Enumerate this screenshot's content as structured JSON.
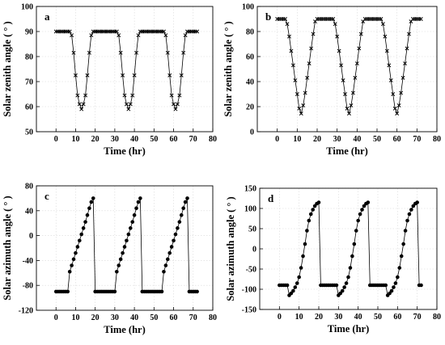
{
  "chart_data": [
    {
      "panel": "a",
      "type": "line",
      "marker": "x",
      "xlabel": "Time (hr)",
      "ylabel": "Solar zenith angle ( ° )",
      "xlim": [
        -10,
        80
      ],
      "ylim": [
        50,
        100
      ],
      "xticks": [
        "0",
        "10",
        "20",
        "30",
        "40",
        "50",
        "60",
        "70",
        "80"
      ],
      "yticks": [
        "50",
        "60",
        "70",
        "80",
        "90",
        "100"
      ],
      "grid": true,
      "series": [
        {
          "x": [
            0,
            1,
            2,
            3,
            4,
            5,
            6,
            7,
            8,
            9,
            10,
            11,
            12,
            13,
            14,
            15,
            16,
            17,
            18,
            19,
            20,
            21,
            22,
            23,
            24,
            25,
            26,
            27,
            28,
            29,
            30,
            31,
            32,
            33,
            34,
            35,
            36,
            37,
            38,
            39,
            40,
            41,
            42,
            43,
            44,
            45,
            46,
            47,
            48,
            49,
            50,
            51,
            52,
            53,
            54,
            55,
            56,
            57,
            58,
            59,
            60,
            61,
            62,
            63,
            64,
            65,
            66,
            67,
            68,
            69,
            70,
            71,
            72
          ],
          "y": [
            90,
            90,
            90,
            90,
            90,
            90,
            90,
            90,
            88.5,
            81.5,
            72.5,
            64.5,
            61,
            59,
            61,
            64.5,
            72.5,
            81.5,
            88.5,
            90,
            90,
            90,
            90,
            90,
            90,
            90,
            90,
            90,
            90,
            90,
            90,
            90,
            88.5,
            81.5,
            72.5,
            64.5,
            61,
            59,
            61,
            64.5,
            72.5,
            81.5,
            88.5,
            90,
            90,
            90,
            90,
            90,
            90,
            90,
            90,
            90,
            90,
            90,
            90,
            90,
            88.5,
            81.5,
            72.5,
            64.5,
            61,
            59,
            61,
            64.5,
            72.5,
            81.5,
            88.5,
            90,
            90,
            90,
            90,
            90,
            90
          ]
        }
      ]
    },
    {
      "panel": "b",
      "type": "line",
      "marker": "x",
      "xlabel": "Time (hr)",
      "ylabel": "Solar zenith angle ( ° )",
      "xlim": [
        -10,
        80
      ],
      "ylim": [
        0,
        100
      ],
      "xticks": [
        "0",
        "10",
        "20",
        "30",
        "40",
        "50",
        "60",
        "70",
        "80"
      ],
      "yticks": [
        "0",
        "20",
        "40",
        "60",
        "80",
        "100"
      ],
      "grid": true,
      "series": [
        {
          "x": [
            0,
            1,
            2,
            3,
            4,
            5,
            6,
            7,
            8,
            9,
            10,
            11,
            12,
            13,
            14,
            15,
            16,
            17,
            18,
            19,
            20,
            21,
            22,
            23,
            24,
            25,
            26,
            27,
            28,
            29,
            30,
            31,
            32,
            33,
            34,
            35,
            36,
            37,
            38,
            39,
            40,
            41,
            42,
            43,
            44,
            45,
            46,
            47,
            48,
            49,
            50,
            51,
            52,
            53,
            54,
            55,
            56,
            57,
            58,
            59,
            60,
            61,
            62,
            63,
            64,
            65,
            66,
            67,
            68,
            69,
            70,
            71,
            72
          ],
          "y": [
            90,
            90,
            90,
            90,
            90,
            86,
            76,
            64.5,
            53,
            41,
            30,
            18.5,
            14.5,
            21,
            31,
            43,
            54.5,
            66.5,
            78,
            88,
            90,
            90,
            90,
            90,
            90,
            90,
            90,
            90,
            90,
            86,
            76,
            64.5,
            53,
            41,
            30,
            18.5,
            14.5,
            21,
            31,
            43,
            54.5,
            66.5,
            78,
            88,
            90,
            90,
            90,
            90,
            90,
            90,
            90,
            90,
            90,
            86,
            76,
            64.5,
            53,
            41,
            30,
            18.5,
            14.5,
            21,
            31,
            43,
            54.5,
            66.5,
            78,
            88,
            90,
            90,
            90,
            90,
            90
          ]
        }
      ]
    },
    {
      "panel": "c",
      "type": "line",
      "marker": "dot",
      "xlabel": "Time (hr)",
      "ylabel": "Solar azimuth angle ( ° )",
      "xlim": [
        -10,
        80
      ],
      "ylim": [
        -120,
        80
      ],
      "xticks": [
        "0",
        "10",
        "20",
        "30",
        "40",
        "50",
        "60",
        "70",
        "80"
      ],
      "yticks": [
        "-120",
        "-80",
        "-40",
        "0",
        "40",
        "80"
      ],
      "grid": true,
      "series": [
        {
          "x": [
            0,
            1,
            2,
            3,
            4,
            5,
            6,
            7,
            8,
            9,
            10,
            11,
            12,
            13,
            14,
            15,
            16,
            17,
            18,
            19,
            20,
            21,
            22,
            23,
            24,
            25,
            26,
            27,
            28,
            29,
            30,
            31,
            32,
            33,
            34,
            35,
            36,
            37,
            38,
            39,
            40,
            41,
            42,
            43,
            44,
            45,
            46,
            47,
            48,
            49,
            50,
            51,
            52,
            53,
            54,
            55,
            56,
            57,
            58,
            59,
            60,
            61,
            62,
            63,
            64,
            65,
            66,
            67,
            68,
            69,
            70,
            71,
            72
          ],
          "y": [
            -90,
            -90,
            -90,
            -90,
            -90,
            -90,
            -90,
            -58,
            -48,
            -38,
            -28,
            -18,
            -8,
            2,
            12,
            22,
            33,
            44,
            54,
            60,
            -90,
            -90,
            -90,
            -90,
            -90,
            -90,
            -90,
            -90,
            -90,
            -90,
            -90,
            -58,
            -48,
            -38,
            -28,
            -18,
            -8,
            2,
            12,
            22,
            33,
            44,
            54,
            60,
            -90,
            -90,
            -90,
            -90,
            -90,
            -90,
            -90,
            -90,
            -90,
            -90,
            -90,
            -58,
            -48,
            -38,
            -28,
            -18,
            -8,
            2,
            12,
            22,
            33,
            44,
            54,
            60,
            -90,
            -90,
            -90,
            -90,
            -90
          ]
        }
      ]
    },
    {
      "panel": "d",
      "type": "line",
      "marker": "dot",
      "xlabel": "Time (hr)",
      "ylabel": "Solar azimuth angle ( ° )",
      "xlim": [
        -10,
        80
      ],
      "ylim": [
        -150,
        150
      ],
      "xticks": [
        "0",
        "10",
        "20",
        "30",
        "40",
        "50",
        "60",
        "70",
        "80"
      ],
      "yticks": [
        "-150",
        "-100",
        "-50",
        "0",
        "50",
        "100",
        "150"
      ],
      "grid": true,
      "series": [
        {
          "x": [
            0,
            1,
            2,
            3,
            4,
            5,
            6,
            7,
            8,
            9,
            10,
            11,
            12,
            13,
            14,
            15,
            16,
            17,
            18,
            19,
            20,
            21,
            22,
            23,
            24,
            25,
            26,
            27,
            28,
            29,
            30,
            31,
            32,
            33,
            34,
            35,
            36,
            37,
            38,
            39,
            40,
            41,
            42,
            43,
            44,
            45,
            46,
            47,
            48,
            49,
            50,
            51,
            52,
            53,
            54,
            55,
            56,
            57,
            58,
            59,
            60,
            61,
            62,
            63,
            64,
            65,
            66,
            67,
            68,
            69,
            70,
            71,
            72
          ],
          "y": [
            -90,
            -90,
            -90,
            -90,
            -90,
            -115,
            -110,
            -104,
            -95,
            -85,
            -70,
            -47,
            -18,
            12,
            45,
            70,
            86,
            97,
            106,
            112,
            115,
            -90,
            -90,
            -90,
            -90,
            -90,
            -90,
            -90,
            -90,
            -90,
            -115,
            -110,
            -104,
            -95,
            -85,
            -70,
            -47,
            -18,
            12,
            45,
            70,
            86,
            97,
            106,
            112,
            115,
            -90,
            -90,
            -90,
            -90,
            -90,
            -90,
            -90,
            -90,
            -90,
            -115,
            -110,
            -104,
            -95,
            -85,
            -70,
            -47,
            -18,
            12,
            45,
            70,
            86,
            97,
            106,
            112,
            115,
            -90,
            -90
          ]
        }
      ]
    }
  ]
}
